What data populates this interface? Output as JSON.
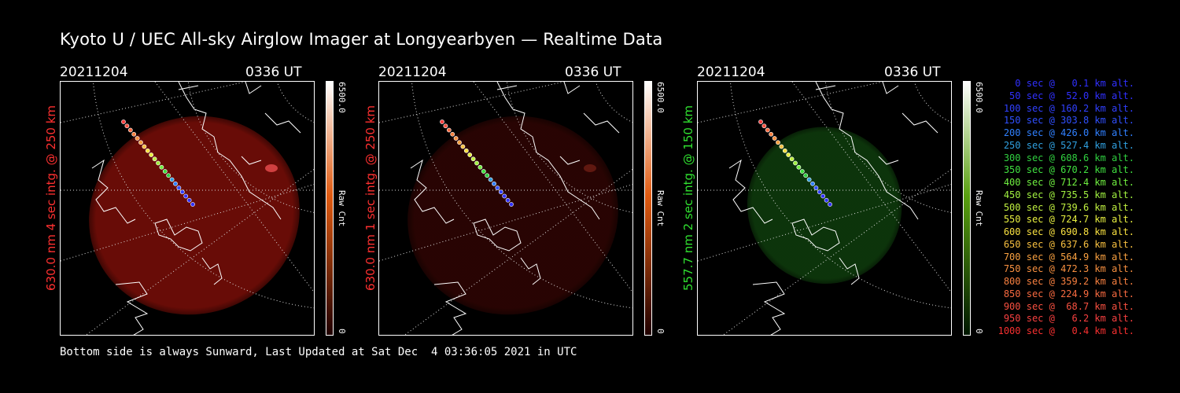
{
  "title": "Kyoto U / UEC All-sky Airglow Imager at Longyearbyen — Realtime Data",
  "panels": [
    {
      "date": "20211204",
      "time": "0336 UT",
      "label": "630.0 nm 4 sec intg. @ 250 km",
      "label_color": "#ff3030",
      "cbar_max": "6500.0",
      "cbar_unit": "Raw Cnt",
      "cbar_min": "0",
      "glow_color": "#7a0e08",
      "glow_opacity": 0.85,
      "cbar_top": "#ffffff",
      "cbar_mid": "#e05a10",
      "cbar_bottom": "#200000"
    },
    {
      "date": "20211204",
      "time": "0336 UT",
      "label": "630.0 nm 1 sec intg. @ 250 km",
      "label_color": "#ff3030",
      "cbar_max": "6500.0",
      "cbar_unit": "Raw Cnt",
      "cbar_min": "0",
      "glow_color": "#3a0604",
      "glow_opacity": 0.7,
      "cbar_top": "#ffffff",
      "cbar_mid": "#e05a10",
      "cbar_bottom": "#200000"
    },
    {
      "date": "20211204",
      "time": "0336 UT",
      "label": "557.7 nm 2 sec intg. @ 150 km",
      "label_color": "#30e030",
      "cbar_max": "6500.0",
      "cbar_unit": "Raw Cnt",
      "cbar_min": "0",
      "glow_color": "#0e3a0c",
      "glow_opacity": 0.9,
      "cbar_top": "#ffffff",
      "cbar_mid": "#5aa010",
      "cbar_bottom": "#001800"
    }
  ],
  "legend": [
    {
      "text": "0 sec @   0.1 km alt.",
      "color": "#3030ff"
    },
    {
      "text": "50 sec @  52.0 km alt.",
      "color": "#3030ff"
    },
    {
      "text": "100 sec @ 160.2 km alt.",
      "color": "#3040ff"
    },
    {
      "text": "150 sec @ 303.8 km alt.",
      "color": "#3050ff"
    },
    {
      "text": "200 sec @ 426.0 km alt.",
      "color": "#3080ff"
    },
    {
      "text": "250 sec @ 527.4 km alt.",
      "color": "#30a0e0"
    },
    {
      "text": "300 sec @ 608.6 km alt.",
      "color": "#30d040"
    },
    {
      "text": "350 sec @ 670.2 km alt.",
      "color": "#40e040"
    },
    {
      "text": "400 sec @ 712.4 km alt.",
      "color": "#70f040"
    },
    {
      "text": "450 sec @ 735.5 km alt.",
      "color": "#a0f040"
    },
    {
      "text": "500 sec @ 739.6 km alt.",
      "color": "#c0f040"
    },
    {
      "text": "550 sec @ 724.7 km alt.",
      "color": "#e8f040"
    },
    {
      "text": "600 sec @ 690.8 km alt.",
      "color": "#f8e040"
    },
    {
      "text": "650 sec @ 637.6 km alt.",
      "color": "#f8c040"
    },
    {
      "text": "700 sec @ 564.9 km alt.",
      "color": "#f8a040"
    },
    {
      "text": "750 sec @ 472.3 km alt.",
      "color": "#f89040"
    },
    {
      "text": "800 sec @ 359.2 km alt.",
      "color": "#f88040"
    },
    {
      "text": "850 sec @ 224.9 km alt.",
      "color": "#f86a40"
    },
    {
      "text": "900 sec @  68.7 km alt.",
      "color": "#f85040"
    },
    {
      "text": "950 sec @   6.2 km alt.",
      "color": "#f84040"
    },
    {
      "text": "1000 sec @   0.4 km alt.",
      "color": "#f83030"
    }
  ],
  "footer": "Bottom side is always Sunward, Last Updated at Sat Dec  4 03:36:05 2021 in UTC"
}
